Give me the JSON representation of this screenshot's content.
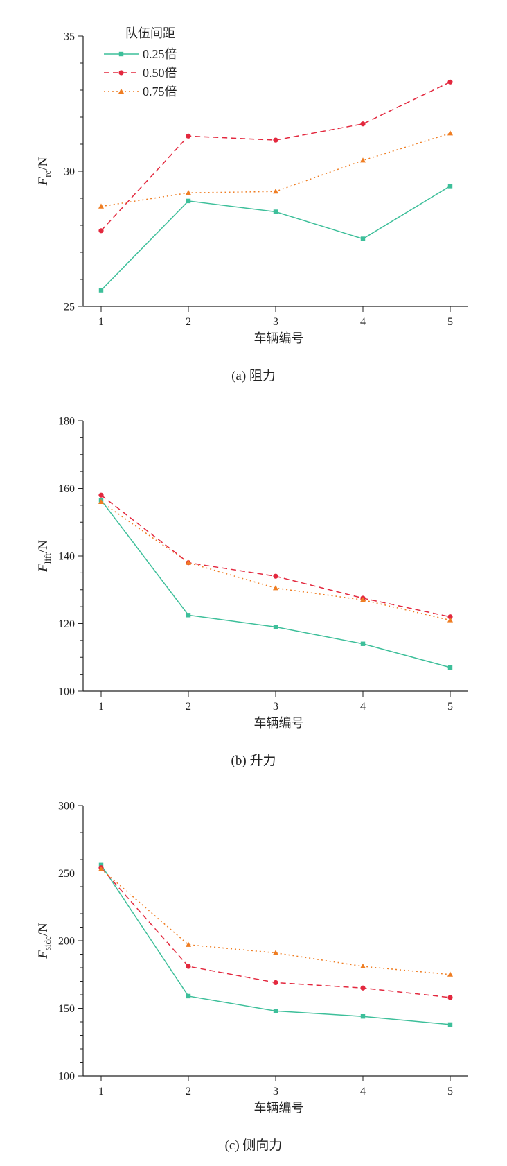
{
  "legend": {
    "title": "队伍间距",
    "series": [
      {
        "name": "0.25倍",
        "color": "#3dbf9a",
        "marker": "square",
        "dash": ""
      },
      {
        "name": "0.50倍",
        "color": "#e3283e",
        "marker": "circle",
        "dash": "8,5"
      },
      {
        "name": "0.75倍",
        "color": "#ef7d22",
        "marker": "triangle",
        "dash": "2,4"
      }
    ]
  },
  "chart_data": [
    {
      "type": "line",
      "caption": "(a)  阻力",
      "xlabel": "车辆编号",
      "ylabel_main": "F",
      "ylabel_sub": "re",
      "ylabel_unit": "/N",
      "x": [
        1,
        2,
        3,
        4,
        5
      ],
      "ylim": [
        25,
        35
      ],
      "yticks": [
        25,
        30,
        35
      ],
      "yminor_step": 1,
      "grid": false,
      "legend_position": "top-left",
      "series": [
        {
          "name": "0.25倍",
          "values": [
            25.6,
            28.9,
            28.5,
            27.5,
            29.45
          ]
        },
        {
          "name": "0.50倍",
          "values": [
            27.8,
            31.3,
            31.15,
            31.75,
            33.3
          ]
        },
        {
          "name": "0.75倍",
          "values": [
            28.7,
            29.2,
            29.25,
            30.4,
            31.4
          ]
        }
      ]
    },
    {
      "type": "line",
      "caption": "(b)  升力",
      "xlabel": "车辆编号",
      "ylabel_main": "F",
      "ylabel_sub": "lift",
      "ylabel_unit": "/N",
      "x": [
        1,
        2,
        3,
        4,
        5
      ],
      "ylim": [
        100,
        180
      ],
      "yticks": [
        100,
        120,
        140,
        160,
        180
      ],
      "yminor_step": 5,
      "grid": false,
      "series": [
        {
          "name": "0.25倍",
          "values": [
            156.5,
            122.5,
            119,
            114,
            107
          ]
        },
        {
          "name": "0.50倍",
          "values": [
            158,
            138,
            134,
            127.5,
            122
          ]
        },
        {
          "name": "0.75倍",
          "values": [
            156,
            138,
            130.5,
            127,
            121
          ]
        }
      ]
    },
    {
      "type": "line",
      "caption": "(c)  侧向力",
      "xlabel": "车辆编号",
      "ylabel_main": "F",
      "ylabel_sub": "side",
      "ylabel_unit": "/N",
      "x": [
        1,
        2,
        3,
        4,
        5
      ],
      "ylim": [
        100,
        300
      ],
      "yticks": [
        100,
        150,
        200,
        250,
        300
      ],
      "yminor_step": 10,
      "grid": false,
      "series": [
        {
          "name": "0.25倍",
          "values": [
            256,
            159,
            148,
            144,
            138
          ]
        },
        {
          "name": "0.50倍",
          "values": [
            254,
            181,
            169,
            165,
            158
          ]
        },
        {
          "name": "0.75倍",
          "values": [
            253,
            197,
            191,
            181,
            175
          ]
        }
      ]
    }
  ]
}
